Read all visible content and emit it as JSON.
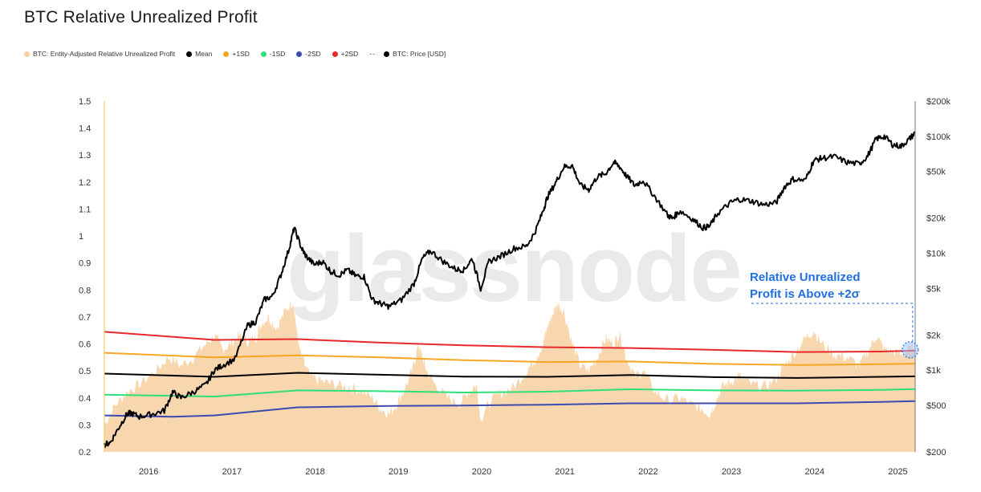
{
  "chart_data": {
    "type": "area",
    "title": "BTC Relative Unrealized Profit",
    "watermark": "glassnode",
    "legend": [
      {
        "label": "BTC: Entity-Adjusted Relative Unrealized Profit",
        "color": "#f7cfa0",
        "kind": "dot"
      },
      {
        "label": "Mean",
        "color": "#000000",
        "kind": "dot"
      },
      {
        "label": "+1SD",
        "color": "#f5a623",
        "kind": "dot"
      },
      {
        "label": "-1SD",
        "color": "#2de07a",
        "kind": "dot"
      },
      {
        "label": "-2SD",
        "color": "#3b4bb0",
        "kind": "dot"
      },
      {
        "label": "+2SD",
        "color": "#e8282b",
        "kind": "dot"
      },
      {
        "label": "BTC: Price [USD]",
        "color": "#000000",
        "kind": "dash-dot",
        "prefix": "--"
      }
    ],
    "x_ticks": [
      "2016",
      "2017",
      "2018",
      "2019",
      "2020",
      "2021",
      "2022",
      "2023",
      "2024",
      "2025"
    ],
    "x_range": [
      2015.68,
      2025.42
    ],
    "y_left": {
      "min": 0.2,
      "max": 1.5,
      "ticks": [
        "1.5",
        "1.4",
        "1.3",
        "1.2",
        "1.1",
        "1",
        "0.9",
        "0.8",
        "0.7",
        "0.6",
        "0.5",
        "0.4",
        "0.3",
        "0.2"
      ]
    },
    "y_right": {
      "scale": "log",
      "min": 200,
      "max": 200000,
      "ticks": [
        {
          "value": 200000,
          "label": "$200k"
        },
        {
          "value": 100000,
          "label": "$100k"
        },
        {
          "value": 50000,
          "label": "$50k"
        },
        {
          "value": 20000,
          "label": "$20k"
        },
        {
          "value": 10000,
          "label": "$10k"
        },
        {
          "value": 5000,
          "label": "$5k"
        },
        {
          "value": 2000,
          "label": "$2k"
        },
        {
          "value": 1000,
          "label": "$1k"
        },
        {
          "value": 500,
          "label": "$500"
        },
        {
          "value": 200,
          "label": "$200"
        }
      ]
    },
    "series": [
      {
        "name": "BTC: Entity-Adjusted Relative Unrealized Profit",
        "color": "#f7cfa0",
        "axis": "left",
        "kind": "area",
        "x": [
          2015.68,
          2015.8,
          2015.95,
          2016.1,
          2016.3,
          2016.45,
          2016.6,
          2016.75,
          2016.9,
          2017.0,
          2017.1,
          2017.2,
          2017.3,
          2017.4,
          2017.5,
          2017.55,
          2017.65,
          2017.75,
          2017.85,
          2017.95,
          2018.0,
          2018.05,
          2018.15,
          2018.3,
          2018.45,
          2018.6,
          2018.75,
          2018.9,
          2019.0,
          2019.1,
          2019.2,
          2019.3,
          2019.4,
          2019.45,
          2019.5,
          2019.55,
          2019.65,
          2019.8,
          2019.95,
          2020.05,
          2020.15,
          2020.2,
          2020.3,
          2020.45,
          2020.6,
          2020.75,
          2020.85,
          2020.95,
          2021.0,
          2021.05,
          2021.12,
          2021.2,
          2021.3,
          2021.4,
          2021.5,
          2021.6,
          2021.7,
          2021.8,
          2021.87,
          2021.95,
          2022.05,
          2022.15,
          2022.3,
          2022.45,
          2022.6,
          2022.75,
          2022.85,
          2022.95,
          2023.0,
          2023.1,
          2023.2,
          2023.3,
          2023.45,
          2023.6,
          2023.75,
          2023.85,
          2023.95,
          2024.1,
          2024.2,
          2024.3,
          2024.45,
          2024.6,
          2024.75,
          2024.85,
          2024.95,
          2025.05,
          2025.15,
          2025.25,
          2025.35,
          2025.42
        ],
        "y": [
          0.3,
          0.37,
          0.42,
          0.45,
          0.5,
          0.55,
          0.52,
          0.55,
          0.6,
          0.63,
          0.58,
          0.6,
          0.63,
          0.61,
          0.62,
          0.67,
          0.7,
          0.66,
          0.72,
          0.76,
          0.62,
          0.55,
          0.48,
          0.46,
          0.45,
          0.44,
          0.43,
          0.4,
          0.36,
          0.34,
          0.38,
          0.44,
          0.52,
          0.6,
          0.55,
          0.5,
          0.45,
          0.4,
          0.38,
          0.42,
          0.45,
          0.32,
          0.38,
          0.42,
          0.44,
          0.5,
          0.54,
          0.6,
          0.66,
          0.7,
          0.75,
          0.72,
          0.6,
          0.52,
          0.5,
          0.55,
          0.62,
          0.6,
          0.64,
          0.55,
          0.48,
          0.5,
          0.42,
          0.39,
          0.4,
          0.37,
          0.36,
          0.34,
          0.37,
          0.44,
          0.46,
          0.48,
          0.45,
          0.44,
          0.47,
          0.52,
          0.56,
          0.62,
          0.65,
          0.6,
          0.56,
          0.55,
          0.52,
          0.57,
          0.63,
          0.58,
          0.57,
          0.56,
          0.58,
          0.6
        ]
      },
      {
        "name": "+2SD",
        "color": "#e8282b",
        "axis": "left",
        "kind": "line",
        "x": [
          2015.68,
          2017.0,
          2018.0,
          2019.0,
          2020.0,
          2021.0,
          2022.0,
          2023.0,
          2024.0,
          2025.0,
          2025.42
        ],
        "y": [
          0.645,
          0.615,
          0.618,
          0.605,
          0.595,
          0.588,
          0.585,
          0.578,
          0.57,
          0.572,
          0.575
        ]
      },
      {
        "name": "+1SD",
        "color": "#f5a623",
        "axis": "left",
        "kind": "line",
        "x": [
          2015.68,
          2017.0,
          2018.0,
          2019.0,
          2020.0,
          2021.0,
          2022.0,
          2023.0,
          2024.0,
          2025.0,
          2025.42
        ],
        "y": [
          0.567,
          0.55,
          0.558,
          0.55,
          0.54,
          0.533,
          0.535,
          0.526,
          0.522,
          0.525,
          0.527
        ]
      },
      {
        "name": "Mean",
        "color": "#000000",
        "axis": "left",
        "kind": "line",
        "x": [
          2015.68,
          2017.0,
          2018.0,
          2019.0,
          2020.0,
          2021.0,
          2022.0,
          2023.0,
          2024.0,
          2025.0,
          2025.42
        ],
        "y": [
          0.49,
          0.478,
          0.493,
          0.486,
          0.479,
          0.478,
          0.485,
          0.477,
          0.474,
          0.478,
          0.48
        ]
      },
      {
        "name": "-1SD",
        "color": "#2de07a",
        "axis": "left",
        "kind": "line",
        "x": [
          2015.68,
          2017.0,
          2018.0,
          2019.0,
          2020.0,
          2021.0,
          2022.0,
          2023.0,
          2024.0,
          2025.0,
          2025.42
        ],
        "y": [
          0.412,
          0.405,
          0.428,
          0.425,
          0.42,
          0.423,
          0.432,
          0.428,
          0.427,
          0.43,
          0.433
        ]
      },
      {
        "name": "-2SD",
        "color": "#3b4bb0",
        "axis": "left",
        "kind": "line",
        "x": [
          2015.68,
          2016.5,
          2017.0,
          2018.0,
          2019.0,
          2020.0,
          2021.0,
          2022.0,
          2023.0,
          2024.0,
          2025.0,
          2025.42
        ],
        "y": [
          0.335,
          0.33,
          0.335,
          0.365,
          0.37,
          0.372,
          0.375,
          0.38,
          0.38,
          0.38,
          0.385,
          0.388
        ]
      },
      {
        "name": "BTC: Price [USD]",
        "color": "#000000",
        "axis": "right",
        "kind": "line",
        "x": [
          2015.68,
          2015.75,
          2015.85,
          2015.95,
          2016.0,
          2016.1,
          2016.25,
          2016.4,
          2016.5,
          2016.6,
          2016.75,
          2016.9,
          2017.0,
          2017.1,
          2017.25,
          2017.4,
          2017.5,
          2017.6,
          2017.7,
          2017.8,
          2017.9,
          2017.96,
          2018.05,
          2018.1,
          2018.2,
          2018.3,
          2018.4,
          2018.5,
          2018.6,
          2018.7,
          2018.8,
          2018.9,
          2019.0,
          2019.1,
          2019.25,
          2019.4,
          2019.5,
          2019.6,
          2019.75,
          2019.9,
          2020.0,
          2020.1,
          2020.2,
          2020.3,
          2020.45,
          2020.6,
          2020.75,
          2020.85,
          2020.95,
          2021.0,
          2021.1,
          2021.2,
          2021.3,
          2021.4,
          2021.5,
          2021.6,
          2021.7,
          2021.8,
          2021.87,
          2021.95,
          2022.05,
          2022.15,
          2022.3,
          2022.45,
          2022.5,
          2022.6,
          2022.75,
          2022.87,
          2022.95,
          2023.05,
          2023.2,
          2023.3,
          2023.45,
          2023.6,
          2023.75,
          2023.85,
          2023.95,
          2024.1,
          2024.2,
          2024.3,
          2024.45,
          2024.6,
          2024.75,
          2024.85,
          2024.95,
          2025.05,
          2025.15,
          2025.25,
          2025.35,
          2025.42
        ],
        "y": [
          230,
          240,
          320,
          420,
          430,
          400,
          420,
          450,
          650,
          580,
          650,
          750,
          1000,
          1100,
          1250,
          2400,
          2600,
          4000,
          4300,
          6500,
          11000,
          16500,
          11000,
          9500,
          8000,
          8500,
          7000,
          6500,
          7200,
          6400,
          6300,
          4000,
          3700,
          3500,
          4000,
          5500,
          9000,
          10500,
          8500,
          7300,
          7200,
          9000,
          5000,
          8500,
          9500,
          11000,
          11500,
          15000,
          23000,
          30000,
          40000,
          55000,
          56000,
          38000,
          35000,
          45000,
          48000,
          60000,
          55000,
          46000,
          38000,
          42000,
          30000,
          21000,
          20000,
          23000,
          19500,
          16500,
          17000,
          22000,
          27000,
          29000,
          28000,
          26000,
          27000,
          37000,
          43000,
          42000,
          62000,
          65000,
          67000,
          60000,
          58000,
          68000,
          95000,
          100000,
          85000,
          82000,
          95000,
          107000
        ]
      }
    ],
    "annotation": {
      "lines": [
        "Relative Unrealized",
        "Profit is Above +2σ"
      ],
      "x": 2025.38,
      "y": 0.59,
      "color": "#1f6fe5"
    }
  }
}
